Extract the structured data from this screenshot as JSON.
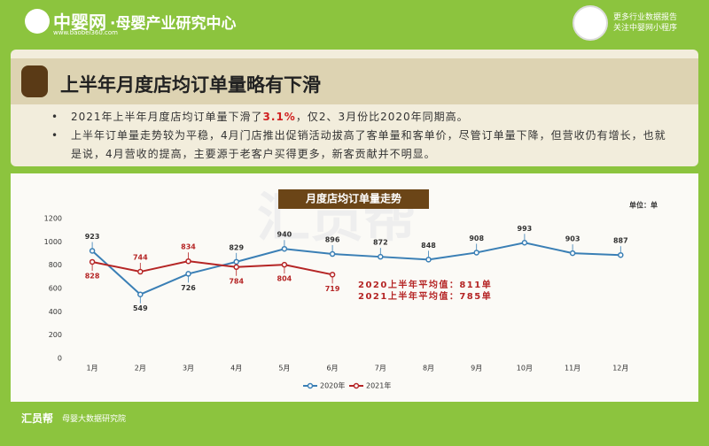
{
  "header": {
    "logo": "中婴网",
    "logo_url": "www.baobei360.com",
    "center": "·母婴产业研究中心",
    "right_lines": [
      "更多行业数据报告",
      "关注中婴网小程序"
    ]
  },
  "section": {
    "title": "上半年月度店均订单量略有下滑",
    "bullets": [
      [
        "2021年上半年月度店均订单量下滑了",
        "3.1%",
        "，仅2、3月份比2020年同期高。"
      ],
      [
        "上半年订单量走势较为平稳，4月门店推出促销活动拔高了客单量和客单价，尽管订单量下降，但营收仍有增长，也就是说，4月营收的提高，主要源于老客户买得更多，新客贡献并不明显。"
      ]
    ]
  },
  "chart_data": {
    "type": "line",
    "title": "月度店均订单量走势",
    "unit": "单位：单",
    "watermark": "汇员帮",
    "categories": [
      "1月",
      "2月",
      "3月",
      "4月",
      "5月",
      "6月",
      "7月",
      "8月",
      "9月",
      "10月",
      "11月",
      "12月"
    ],
    "series": [
      {
        "name": "2020年",
        "color": "#3a7fb5",
        "values": [
          923,
          549,
          726,
          829,
          940,
          896,
          872,
          848,
          908,
          993,
          903,
          887
        ]
      },
      {
        "name": "2021年",
        "color": "#b52525",
        "values": [
          828,
          744,
          834,
          784,
          804,
          719,
          null,
          null,
          null,
          null,
          null,
          null
        ]
      }
    ],
    "annotations": [
      "2020上半年平均值：811单",
      "2021上半年平均值：785单"
    ],
    "ylim": [
      0,
      1200
    ],
    "yticks": [
      0,
      200,
      400,
      600,
      800,
      1000,
      1200
    ],
    "grid": false,
    "legend": "bottom"
  },
  "footer": {
    "brand": "汇员帮",
    "org": "母婴大数据研究院"
  }
}
